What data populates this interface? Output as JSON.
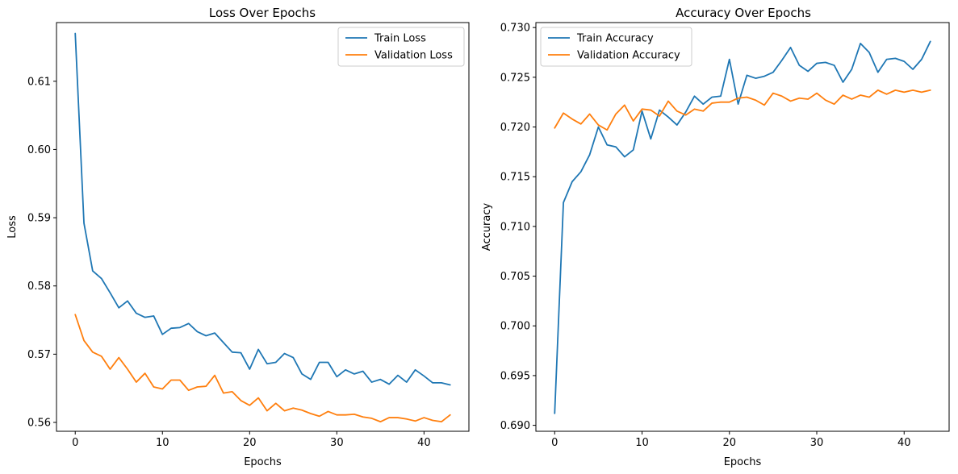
{
  "chart_data": [
    {
      "type": "line",
      "title": "Loss Over Epochs",
      "xlabel": "Epochs",
      "ylabel": "Loss",
      "xlim": [
        -2.15,
        45.15
      ],
      "ylim": [
        0.5587,
        0.6186
      ],
      "xticks": [
        0,
        10,
        20,
        30,
        40
      ],
      "yticks": [
        0.56,
        0.57,
        0.58,
        0.59,
        0.6,
        0.61
      ],
      "ytick_labels": [
        "0.56",
        "0.57",
        "0.58",
        "0.59",
        "0.60",
        "0.61"
      ],
      "grid": false,
      "legend_position": "top-right",
      "x": [
        0,
        1,
        2,
        3,
        4,
        5,
        6,
        7,
        8,
        9,
        10,
        11,
        12,
        13,
        14,
        15,
        16,
        17,
        18,
        19,
        20,
        21,
        22,
        23,
        24,
        25,
        26,
        27,
        28,
        29,
        30,
        31,
        32,
        33,
        34,
        35,
        36,
        37,
        38,
        39,
        40,
        41,
        42,
        43
      ],
      "series": [
        {
          "name": "Train Loss",
          "color": "#1f77b4",
          "values": [
            0.617,
            0.5892,
            0.5822,
            0.5811,
            0.579,
            0.5768,
            0.5778,
            0.576,
            0.5754,
            0.5756,
            0.5729,
            0.5738,
            0.5739,
            0.5745,
            0.5733,
            0.5727,
            0.5731,
            0.5717,
            0.5703,
            0.5702,
            0.5678,
            0.5707,
            0.5686,
            0.5688,
            0.5701,
            0.5695,
            0.5671,
            0.5663,
            0.5688,
            0.5688,
            0.5667,
            0.5677,
            0.5671,
            0.5675,
            0.5659,
            0.5663,
            0.5656,
            0.5669,
            0.5659,
            0.5677,
            0.5668,
            0.5658,
            0.5658,
            0.5655
          ]
        },
        {
          "name": "Validation Loss",
          "color": "#ff7f0e",
          "values": [
            0.5758,
            0.572,
            0.5703,
            0.5697,
            0.5678,
            0.5695,
            0.5678,
            0.5659,
            0.5672,
            0.5652,
            0.5649,
            0.5662,
            0.5662,
            0.5647,
            0.5652,
            0.5653,
            0.5669,
            0.5643,
            0.5645,
            0.5632,
            0.5625,
            0.5636,
            0.5617,
            0.5628,
            0.5617,
            0.5621,
            0.5618,
            0.5613,
            0.5609,
            0.5616,
            0.5611,
            0.5611,
            0.5612,
            0.5608,
            0.5606,
            0.5601,
            0.5607,
            0.5607,
            0.5605,
            0.5602,
            0.5607,
            0.5603,
            0.5601,
            0.5611
          ]
        }
      ]
    },
    {
      "type": "line",
      "title": "Accuracy Over Epochs",
      "xlabel": "Epochs",
      "ylabel": "Accuracy",
      "xlim": [
        -2.15,
        45.15
      ],
      "ylim": [
        0.6894,
        0.7305
      ],
      "xticks": [
        0,
        10,
        20,
        30,
        40
      ],
      "yticks": [
        0.69,
        0.695,
        0.7,
        0.705,
        0.71,
        0.715,
        0.72,
        0.725,
        0.73
      ],
      "ytick_labels": [
        "0.690",
        "0.695",
        "0.700",
        "0.705",
        "0.710",
        "0.715",
        "0.720",
        "0.725",
        "0.730"
      ],
      "grid": false,
      "legend_position": "top-left",
      "x": [
        0,
        1,
        2,
        3,
        4,
        5,
        6,
        7,
        8,
        9,
        10,
        11,
        12,
        13,
        14,
        15,
        16,
        17,
        18,
        19,
        20,
        21,
        22,
        23,
        24,
        25,
        26,
        27,
        28,
        29,
        30,
        31,
        32,
        33,
        34,
        35,
        36,
        37,
        38,
        39,
        40,
        41,
        42,
        43
      ],
      "series": [
        {
          "name": "Train Accuracy",
          "color": "#1f77b4",
          "values": [
            0.6912,
            0.7124,
            0.7145,
            0.7155,
            0.7172,
            0.72,
            0.7182,
            0.718,
            0.717,
            0.7177,
            0.7216,
            0.7188,
            0.7217,
            0.721,
            0.7202,
            0.7215,
            0.7231,
            0.7223,
            0.723,
            0.7231,
            0.7268,
            0.7223,
            0.7252,
            0.7249,
            0.7251,
            0.7255,
            0.7267,
            0.728,
            0.7262,
            0.7256,
            0.7264,
            0.7265,
            0.7262,
            0.7245,
            0.7258,
            0.7284,
            0.7275,
            0.7255,
            0.7268,
            0.7269,
            0.7266,
            0.7258,
            0.7268,
            0.7286
          ]
        },
        {
          "name": "Validation Accuracy",
          "color": "#ff7f0e",
          "values": [
            0.7199,
            0.7214,
            0.7208,
            0.7203,
            0.7213,
            0.7202,
            0.7197,
            0.7213,
            0.7222,
            0.7206,
            0.7218,
            0.7217,
            0.7211,
            0.7226,
            0.7216,
            0.7212,
            0.7218,
            0.7216,
            0.7224,
            0.7225,
            0.7225,
            0.7229,
            0.723,
            0.7227,
            0.7222,
            0.7234,
            0.7231,
            0.7226,
            0.7229,
            0.7228,
            0.7234,
            0.7227,
            0.7223,
            0.7232,
            0.7228,
            0.7232,
            0.723,
            0.7237,
            0.7233,
            0.7237,
            0.7235,
            0.7237,
            0.7235,
            0.7237
          ]
        }
      ]
    }
  ]
}
